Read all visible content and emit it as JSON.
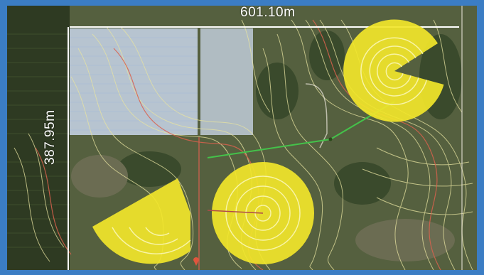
{
  "map": {
    "type": "aerial-irrigation-plan",
    "dimensions": {
      "width_label": "601.10m",
      "height_label": "387.95m"
    },
    "colors": {
      "pivot_fill": "#f2e62a",
      "pivot_ring": "#fbf7b4",
      "contour_light": "#e7e3a0",
      "contour_red": "#d9614e",
      "pipeline": "#44c24a",
      "boundary": "#ffffff",
      "field_tint": "#c9d6ea"
    },
    "pivots": [
      {
        "id": "pivot-northeast",
        "shape": "circle-with-wedge-removed"
      },
      {
        "id": "pivot-south-center",
        "shape": "full-circle"
      },
      {
        "id": "pivot-southwest",
        "shape": "partial-circle"
      }
    ],
    "fields": [
      {
        "id": "field-large-tinted"
      },
      {
        "id": "field-small-tinted"
      }
    ]
  }
}
